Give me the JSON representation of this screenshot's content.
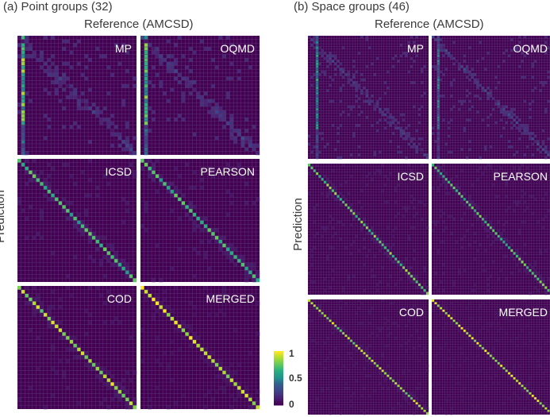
{
  "panels": [
    {
      "title": "(a) Point groups (32)",
      "reference_label": "Reference (AMCSD)",
      "prediction_label": "Prediction"
    },
    {
      "title": "(b) Space groups (46)",
      "reference_label": "Reference (AMCSD)",
      "prediction_label": "Prediction"
    }
  ],
  "colorbar": {
    "ticks": [
      "1",
      "0.5",
      "0"
    ]
  },
  "colors": {
    "background": "#440154",
    "grid": "#5a3470",
    "separator": "#ffffff"
  },
  "chart_data": [
    {
      "type": "heatmap",
      "title": "(a) Point groups (32)",
      "xlabel": "Reference (AMCSD)",
      "ylabel": "Prediction",
      "n": 32,
      "value_range": [
        0,
        1
      ],
      "colormap": "viridis",
      "subplots": [
        {
          "name": "MP",
          "diag": 0.15,
          "bright_column": 1,
          "bright_column_value": 0.85,
          "offdiag": 0.1
        },
        {
          "name": "OQMD",
          "diag": 0.2,
          "bright_column": 1,
          "bright_column_value": 0.8,
          "offdiag": 0.1
        },
        {
          "name": "ICSD",
          "diag": 0.65,
          "bright_column": -1,
          "bright_column_value": 0,
          "offdiag": 0.05
        },
        {
          "name": "PEARSON",
          "diag": 0.65,
          "bright_column": -1,
          "bright_column_value": 0,
          "offdiag": 0.05
        },
        {
          "name": "COD",
          "diag": 0.85,
          "bright_column": -1,
          "bright_column_value": 0,
          "offdiag": 0.04
        },
        {
          "name": "MERGED",
          "diag": 0.9,
          "bright_column": -1,
          "bright_column_value": 0,
          "offdiag": 0.03
        }
      ]
    },
    {
      "type": "heatmap",
      "title": "(b) Space groups (46)",
      "xlabel": "Reference (AMCSD)",
      "ylabel": "Prediction",
      "n": 46,
      "value_range": [
        0,
        1
      ],
      "colormap": "viridis",
      "subplots": [
        {
          "name": "MP",
          "diag": 0.15,
          "bright_column": 3,
          "bright_column_value": 0.6,
          "offdiag": 0.1
        },
        {
          "name": "OQMD",
          "diag": 0.2,
          "bright_column": 2,
          "bright_column_value": 0.5,
          "offdiag": 0.1
        },
        {
          "name": "ICSD",
          "diag": 0.75,
          "bright_column": -1,
          "bright_column_value": 0,
          "offdiag": 0.04
        },
        {
          "name": "PEARSON",
          "diag": 0.7,
          "bright_column": -1,
          "bright_column_value": 0,
          "offdiag": 0.04
        },
        {
          "name": "COD",
          "diag": 0.85,
          "bright_column": -1,
          "bright_column_value": 0,
          "offdiag": 0.03
        },
        {
          "name": "MERGED",
          "diag": 0.9,
          "bright_column": -1,
          "bright_column_value": 0,
          "offdiag": 0.02
        }
      ]
    }
  ]
}
